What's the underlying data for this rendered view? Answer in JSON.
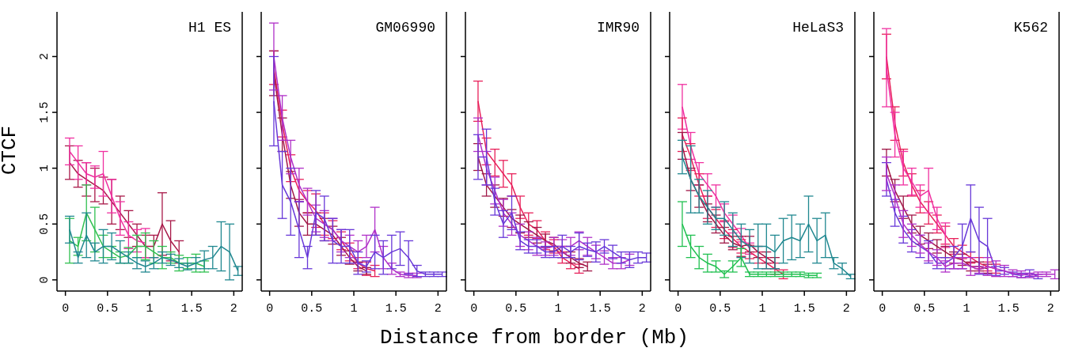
{
  "chart_data": [
    {
      "type": "line",
      "title": "H1 ES",
      "ylabel": "CTCF",
      "marker": "none",
      "xlim": [
        -0.1,
        2.1
      ],
      "ylim": [
        -0.1,
        2.4
      ],
      "xticks": [
        0,
        0.5,
        1,
        1.5,
        2
      ],
      "yticks": [
        0,
        0.5,
        1,
        1.5,
        2
      ],
      "x": [
        0.05,
        0.15,
        0.25,
        0.35,
        0.45,
        0.55,
        0.65,
        0.75,
        0.85,
        0.95,
        1.05,
        1.15,
        1.25,
        1.35,
        1.45,
        1.55,
        1.65,
        1.75,
        1.85,
        1.95,
        2.05
      ],
      "series": [
        {
          "color": "#a81848",
          "values": [
            1.05,
            0.95,
            0.9,
            0.85,
            0.8,
            0.7,
            0.6,
            0.5,
            0.4,
            0.3,
            0.3,
            0.5,
            0.35,
            0.25,
            null,
            null,
            null,
            null,
            null,
            null,
            null
          ],
          "errors": [
            0.15,
            0.12,
            0.15,
            0.15,
            0.12,
            0.2,
            0.15,
            0.12,
            0.1,
            0.1,
            0.1,
            0.28,
            0.18,
            0.1,
            null,
            null,
            null,
            null,
            null,
            null,
            null
          ]
        },
        {
          "color": "#f030a0",
          "values": [
            1.15,
            1.05,
            0.95,
            0.92,
            0.95,
            0.75,
            0.55,
            0.4,
            0.35,
            0.33,
            null,
            null,
            null,
            null,
            null,
            null,
            null,
            null,
            null,
            null,
            null
          ],
          "errors": [
            0.12,
            0.15,
            0.1,
            0.1,
            0.2,
            0.15,
            0.15,
            0.12,
            0.1,
            0.13,
            null,
            null,
            null,
            null,
            null,
            null,
            null,
            null,
            null,
            null,
            null
          ]
        },
        {
          "color": "#30c050",
          "values": [
            0.35,
            0.3,
            0.6,
            0.45,
            0.3,
            0.25,
            0.2,
            0.22,
            0.3,
            0.3,
            0.25,
            0.2,
            0.2,
            0.15,
            0.15,
            0.15,
            0.12,
            null,
            null,
            null,
            null
          ],
          "errors": [
            0.2,
            0.08,
            0.25,
            0.2,
            0.1,
            0.05,
            0.05,
            0.07,
            0.1,
            0.12,
            0.1,
            0.1,
            0.05,
            0.07,
            0.05,
            0.08,
            0.05,
            null,
            null,
            null,
            null
          ]
        },
        {
          "color": "#208890",
          "values": [
            0.45,
            0.2,
            0.4,
            0.25,
            0.3,
            0.3,
            0.25,
            0.2,
            0.15,
            0.12,
            0.15,
            0.2,
            0.18,
            0.15,
            0.12,
            0.15,
            0.18,
            0.2,
            0.3,
            0.25,
            0.08
          ],
          "errors": [
            0.12,
            0.05,
            0.2,
            0.08,
            0.15,
            0.12,
            0.1,
            0.05,
            0.05,
            0.05,
            0.05,
            0.05,
            0.05,
            0.04,
            0.03,
            0.05,
            0.08,
            0.1,
            0.22,
            0.25,
            0.04
          ]
        }
      ]
    },
    {
      "type": "line",
      "title": "GM06990",
      "marker": "none",
      "tick_labels": "x",
      "xlim": [
        -0.1,
        2.1
      ],
      "ylim": [
        -0.1,
        2.4
      ],
      "xticks": [
        0,
        0.5,
        1,
        1.5,
        2
      ],
      "yticks": [
        0,
        0.5,
        1,
        1.5,
        2
      ],
      "x": [
        0.05,
        0.15,
        0.25,
        0.35,
        0.45,
        0.55,
        0.65,
        0.75,
        0.85,
        0.95,
        1.05,
        1.15,
        1.25,
        1.35,
        1.45,
        1.55,
        1.65,
        1.75,
        1.85,
        1.95,
        2.05
      ],
      "series": [
        {
          "color": "#e8205a",
          "values": [
            1.9,
            1.4,
            1.0,
            0.8,
            0.7,
            0.62,
            0.5,
            0.45,
            0.35,
            0.25,
            0.15,
            0.1,
            0.08,
            null,
            null,
            null,
            null,
            null,
            null,
            null,
            null
          ],
          "errors": [
            0.15,
            0.12,
            0.12,
            0.1,
            0.1,
            0.15,
            0.1,
            0.08,
            0.08,
            0.08,
            0.05,
            0.06,
            0.05,
            null,
            null,
            null,
            null,
            null,
            null,
            null,
            null
          ]
        },
        {
          "color": "#a01848",
          "values": [
            1.85,
            1.3,
            0.85,
            0.6,
            0.5,
            0.5,
            0.45,
            0.4,
            0.3,
            0.2,
            0.12,
            0.08,
            null,
            null,
            null,
            null,
            null,
            null,
            null,
            null,
            null
          ],
          "errors": [
            0.2,
            0.15,
            0.12,
            0.12,
            0.1,
            0.1,
            0.1,
            0.08,
            0.08,
            0.06,
            0.04,
            0.03,
            null,
            null,
            null,
            null,
            null,
            null,
            null,
            null,
            null
          ]
        },
        {
          "color": "#b030c8",
          "values": [
            2.0,
            1.45,
            1.1,
            0.85,
            0.7,
            0.55,
            0.5,
            0.45,
            0.35,
            0.3,
            0.25,
            0.3,
            0.45,
            0.2,
            0.1,
            0.05,
            0.04,
            0.04,
            null,
            null,
            null
          ],
          "errors": [
            0.3,
            0.2,
            0.15,
            0.15,
            0.12,
            0.12,
            0.12,
            0.1,
            0.1,
            0.1,
            0.1,
            0.1,
            0.2,
            0.1,
            0.05,
            0.02,
            0.02,
            0.02,
            null,
            null,
            null
          ]
        },
        {
          "color": "#6838d8",
          "values": [
            1.6,
            0.85,
            0.7,
            0.45,
            0.2,
            0.6,
            0.55,
            0.35,
            0.3,
            0.3,
            0.15,
            0.12,
            0.25,
            0.2,
            0.25,
            0.28,
            0.2,
            0.08,
            0.05,
            0.05,
            0.05
          ],
          "errors": [
            0.4,
            0.3,
            0.3,
            0.25,
            0.1,
            0.2,
            0.2,
            0.2,
            0.15,
            0.15,
            0.1,
            0.05,
            0.15,
            0.15,
            0.15,
            0.15,
            0.15,
            0.05,
            0.02,
            0.02,
            0.02
          ]
        }
      ]
    },
    {
      "type": "line",
      "title": "IMR90",
      "xlabel": "Distance from border (Mb)",
      "marker": "none",
      "tick_labels": "x",
      "xlim": [
        -0.1,
        2.1
      ],
      "ylim": [
        -0.1,
        2.4
      ],
      "xticks": [
        0,
        0.5,
        1,
        1.5,
        2
      ],
      "yticks": [
        0,
        0.5,
        1,
        1.5,
        2
      ],
      "x": [
        0.05,
        0.15,
        0.25,
        0.35,
        0.45,
        0.55,
        0.65,
        0.75,
        0.85,
        0.95,
        1.05,
        1.15,
        1.25,
        1.35,
        1.45,
        1.55,
        1.65,
        1.75,
        1.85,
        1.95,
        2.05
      ],
      "series": [
        {
          "color": "#e8205a",
          "values": [
            1.6,
            1.15,
            1.05,
            0.95,
            0.85,
            0.65,
            0.5,
            0.45,
            0.35,
            0.3,
            0.2,
            0.15,
            0.1,
            null,
            null,
            null,
            null,
            null,
            null,
            null,
            null
          ],
          "errors": [
            0.18,
            0.12,
            0.12,
            0.12,
            0.1,
            0.1,
            0.1,
            0.08,
            0.08,
            0.06,
            0.05,
            0.05,
            0.04,
            null,
            null,
            null,
            null,
            null,
            null,
            null,
            null
          ]
        },
        {
          "color": "#a01848",
          "values": [
            1.1,
            0.85,
            0.75,
            0.65,
            0.55,
            0.5,
            0.45,
            0.4,
            0.35,
            0.32,
            0.25,
            0.2,
            0.15,
            0.12,
            null,
            null,
            null,
            null,
            null,
            null,
            null
          ],
          "errors": [
            0.12,
            0.1,
            0.1,
            0.08,
            0.08,
            0.08,
            0.07,
            0.07,
            0.06,
            0.06,
            0.05,
            0.05,
            0.04,
            0.04,
            null,
            null,
            null,
            null,
            null,
            null,
            null
          ]
        },
        {
          "color": "#b030c8",
          "values": [
            1.3,
            1.0,
            0.8,
            0.6,
            0.5,
            0.4,
            0.35,
            0.3,
            0.28,
            0.3,
            0.3,
            0.3,
            0.35,
            0.3,
            0.25,
            0.2,
            0.15,
            0.15,
            0.18,
            null,
            null
          ],
          "errors": [
            0.15,
            0.15,
            0.12,
            0.12,
            0.1,
            0.1,
            0.08,
            0.08,
            0.06,
            0.08,
            0.06,
            0.08,
            0.08,
            0.08,
            0.06,
            0.06,
            0.05,
            0.05,
            0.05,
            null,
            null
          ]
        },
        {
          "color": "#6838d8",
          "values": [
            1.1,
            1.1,
            0.7,
            0.5,
            0.6,
            0.35,
            0.3,
            0.3,
            0.25,
            0.25,
            0.3,
            0.25,
            0.3,
            0.27,
            0.25,
            0.3,
            0.25,
            0.2,
            0.18,
            0.2,
            0.2
          ],
          "errors": [
            0.2,
            0.25,
            0.12,
            0.12,
            0.15,
            0.08,
            0.06,
            0.06,
            0.05,
            0.05,
            0.1,
            0.05,
            0.12,
            0.06,
            0.09,
            0.06,
            0.06,
            0.05,
            0.07,
            0.05,
            0.04
          ]
        }
      ]
    },
    {
      "type": "line",
      "title": "HeLaS3",
      "marker": "none",
      "tick_labels": "x",
      "xlim": [
        -0.1,
        2.1
      ],
      "ylim": [
        -0.1,
        2.4
      ],
      "xticks": [
        0,
        0.5,
        1,
        1.5,
        2
      ],
      "yticks": [
        0,
        0.5,
        1,
        1.5,
        2
      ],
      "x": [
        0.05,
        0.15,
        0.25,
        0.35,
        0.45,
        0.55,
        0.65,
        0.75,
        0.85,
        0.95,
        1.05,
        1.15,
        1.25,
        1.35,
        1.45,
        1.55,
        1.65,
        1.75,
        1.85,
        1.95,
        2.05
      ],
      "series": [
        {
          "color": "#f030a0",
          "values": [
            1.55,
            1.2,
            0.95,
            0.85,
            0.75,
            0.6,
            0.5,
            0.4,
            0.28,
            null,
            null,
            null,
            null,
            null,
            null,
            null,
            null,
            null,
            null,
            null,
            null
          ],
          "errors": [
            0.2,
            0.12,
            0.1,
            0.1,
            0.1,
            0.08,
            0.08,
            0.06,
            0.05,
            null,
            null,
            null,
            null,
            null,
            null,
            null,
            null,
            null,
            null,
            null,
            null
          ]
        },
        {
          "color": "#e8205a",
          "values": [
            1.3,
            1.1,
            0.85,
            0.65,
            0.55,
            0.45,
            0.37,
            0.3,
            0.25,
            0.2,
            0.15,
            0.1,
            0.05,
            null,
            null,
            null,
            null,
            null,
            null,
            null,
            null
          ],
          "errors": [
            0.15,
            0.12,
            0.1,
            0.1,
            0.08,
            0.08,
            0.08,
            0.06,
            0.06,
            0.05,
            0.05,
            0.05,
            0.04,
            null,
            null,
            null,
            null,
            null,
            null,
            null,
            null
          ]
        },
        {
          "color": "#a01848",
          "values": [
            1.2,
            0.9,
            0.75,
            0.6,
            0.5,
            0.4,
            0.33,
            0.3,
            0.32,
            0.25,
            0.2,
            0.15,
            null,
            null,
            null,
            null,
            null,
            null,
            null,
            null,
            null
          ],
          "errors": [
            0.12,
            0.1,
            0.1,
            0.08,
            0.08,
            0.07,
            0.06,
            0.09,
            0.07,
            0.05,
            0.05,
            0.05,
            null,
            null,
            null,
            null,
            null,
            null,
            null,
            null,
            null
          ]
        },
        {
          "color": "#208890",
          "values": [
            1.1,
            0.9,
            0.75,
            0.65,
            0.55,
            0.55,
            0.45,
            0.35,
            0.3,
            0.3,
            0.3,
            0.25,
            0.35,
            0.38,
            0.35,
            0.5,
            0.35,
            0.4,
            0.15,
            0.1,
            0.03
          ],
          "errors": [
            0.15,
            0.3,
            0.15,
            0.15,
            0.1,
            0.15,
            0.15,
            0.15,
            0.15,
            0.2,
            0.2,
            0.15,
            0.2,
            0.2,
            0.15,
            0.25,
            0.2,
            0.2,
            0.05,
            0.05,
            0.02
          ]
        },
        {
          "color": "#20c050",
          "values": [
            0.5,
            0.3,
            0.2,
            0.15,
            0.12,
            0.05,
            0.12,
            0.2,
            0.05,
            0.05,
            0.05,
            0.05,
            0.05,
            0.05,
            0.05,
            0.04,
            0.04,
            null,
            null,
            null,
            null
          ],
          "errors": [
            0.2,
            0.1,
            0.1,
            0.08,
            0.05,
            0.03,
            0.05,
            0.08,
            0.02,
            0.02,
            0.02,
            0.02,
            0.02,
            0.02,
            0.02,
            0.02,
            0.02,
            null,
            null,
            null,
            null
          ]
        }
      ]
    },
    {
      "type": "line",
      "title": "K562",
      "marker": "none",
      "tick_labels": "x",
      "xlim": [
        -0.1,
        2.1
      ],
      "ylim": [
        -0.1,
        2.4
      ],
      "xticks": [
        0,
        0.5,
        1,
        1.5,
        2
      ],
      "yticks": [
        0,
        0.5,
        1,
        1.5,
        2
      ],
      "x": [
        0.05,
        0.15,
        0.25,
        0.35,
        0.45,
        0.55,
        0.65,
        0.75,
        0.85,
        0.95,
        1.05,
        1.15,
        1.25,
        1.35,
        1.45,
        1.55,
        1.65,
        1.75,
        1.85,
        1.95,
        2.05
      ],
      "series": [
        {
          "color": "#e8205a",
          "values": [
            2.0,
            1.4,
            1.05,
            0.85,
            0.7,
            0.6,
            0.5,
            0.4,
            0.3,
            0.25,
            0.2,
            0.15,
            0.12,
            0.1,
            null,
            null,
            null,
            null,
            null,
            null,
            null
          ],
          "errors": [
            0.2,
            0.15,
            0.12,
            0.1,
            0.1,
            0.1,
            0.08,
            0.08,
            0.07,
            0.06,
            0.05,
            0.05,
            0.04,
            0.04,
            null,
            null,
            null,
            null,
            null,
            null,
            null
          ]
        },
        {
          "color": "#f030a0",
          "values": [
            1.9,
            1.3,
            1.0,
            0.88,
            0.75,
            0.8,
            0.55,
            0.4,
            null,
            null,
            null,
            null,
            null,
            null,
            null,
            null,
            null,
            null,
            null,
            null,
            null
          ],
          "errors": [
            0.35,
            0.2,
            0.15,
            0.12,
            0.1,
            0.2,
            0.1,
            0.11,
            null,
            null,
            null,
            null,
            null,
            null,
            null,
            null,
            null,
            null,
            null,
            null,
            null
          ]
        },
        {
          "color": "#a01848",
          "values": [
            1.05,
            0.8,
            0.65,
            0.5,
            0.4,
            0.35,
            0.3,
            0.25,
            0.2,
            0.18,
            0.12,
            0.12,
            0.1,
            null,
            null,
            null,
            null,
            null,
            null,
            null,
            null
          ],
          "errors": [
            0.12,
            0.1,
            0.1,
            0.08,
            0.08,
            0.07,
            0.06,
            0.05,
            0.05,
            0.05,
            0.04,
            0.04,
            0.04,
            null,
            null,
            null,
            null,
            null,
            null,
            null,
            null
          ]
        },
        {
          "color": "#6838d8",
          "values": [
            0.9,
            0.6,
            0.45,
            0.35,
            0.3,
            0.25,
            0.15,
            0.15,
            0.2,
            0.3,
            0.55,
            0.35,
            0.3,
            0.08,
            0.08,
            0.05,
            0.04,
            0.06,
            0.03,
            null,
            null
          ],
          "errors": [
            0.15,
            0.12,
            0.12,
            0.1,
            0.1,
            0.1,
            0.05,
            0.05,
            0.1,
            0.2,
            0.3,
            0.3,
            0.25,
            0.04,
            0.03,
            0.02,
            0.02,
            0.03,
            0.02,
            null,
            null
          ]
        },
        {
          "color": "#b030c8",
          "values": [
            0.95,
            0.75,
            0.5,
            0.4,
            0.32,
            0.25,
            0.2,
            0.12,
            0.15,
            0.15,
            0.12,
            0.09,
            0.12,
            0.1,
            0.08,
            0.06,
            0.05,
            0.04,
            0.05,
            0.05,
            0.05
          ],
          "errors": [
            0.15,
            0.1,
            0.12,
            0.1,
            0.08,
            0.08,
            0.07,
            0.05,
            0.05,
            0.05,
            0.08,
            0.03,
            0.08,
            0.07,
            0.05,
            0.03,
            0.03,
            0.02,
            0.02,
            0.02,
            0.04
          ]
        }
      ]
    }
  ]
}
